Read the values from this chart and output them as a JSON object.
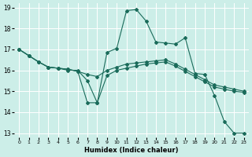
{
  "xlabel": "Humidex (Indice chaleur)",
  "bg_color": "#cceee8",
  "grid_color": "#ffffff",
  "line_color": "#1a6b5a",
  "xlim": [
    -0.5,
    23.5
  ],
  "ylim": [
    12.8,
    19.2
  ],
  "yticks": [
    13,
    14,
    15,
    16,
    17,
    18,
    19
  ],
  "xticks": [
    0,
    1,
    2,
    3,
    4,
    5,
    6,
    7,
    8,
    9,
    10,
    11,
    12,
    13,
    14,
    15,
    16,
    17,
    18,
    19,
    20,
    21,
    22,
    23
  ],
  "lines": [
    {
      "x": [
        0,
        1,
        2,
        3,
        4,
        5,
        6,
        7,
        8,
        9,
        10,
        11,
        12,
        13,
        14,
        15,
        16,
        17,
        18,
        19,
        20,
        21,
        22,
        23
      ],
      "y": [
        17.0,
        16.7,
        16.4,
        16.15,
        16.1,
        16.0,
        16.0,
        15.5,
        14.45,
        15.75,
        16.0,
        16.1,
        16.2,
        16.3,
        16.35,
        16.4,
        16.2,
        15.95,
        15.7,
        15.45,
        15.2,
        15.1,
        15.0,
        14.95
      ]
    },
    {
      "x": [
        0,
        1,
        2,
        3,
        4,
        5,
        6,
        7,
        8,
        9,
        10,
        11,
        12,
        13,
        14,
        15,
        16,
        17,
        18,
        19,
        20,
        21,
        22,
        23
      ],
      "y": [
        17.0,
        16.7,
        16.4,
        16.15,
        16.1,
        16.05,
        15.95,
        14.45,
        14.45,
        16.85,
        17.05,
        18.85,
        18.9,
        18.35,
        17.35,
        17.3,
        17.25,
        17.55,
        15.85,
        15.8,
        14.8,
        13.55,
        13.0,
        13.0
      ]
    },
    {
      "x": [
        0,
        1,
        2,
        3,
        4,
        5,
        6,
        7,
        8,
        9,
        10,
        11,
        12,
        13,
        14,
        15,
        16,
        17,
        18,
        19,
        20,
        21,
        22,
        23
      ],
      "y": [
        17.0,
        16.7,
        16.4,
        16.15,
        16.1,
        16.05,
        15.95,
        15.8,
        15.7,
        16.0,
        16.15,
        16.3,
        16.35,
        16.4,
        16.45,
        16.5,
        16.3,
        16.05,
        15.8,
        15.55,
        15.3,
        15.2,
        15.1,
        15.0
      ]
    }
  ]
}
